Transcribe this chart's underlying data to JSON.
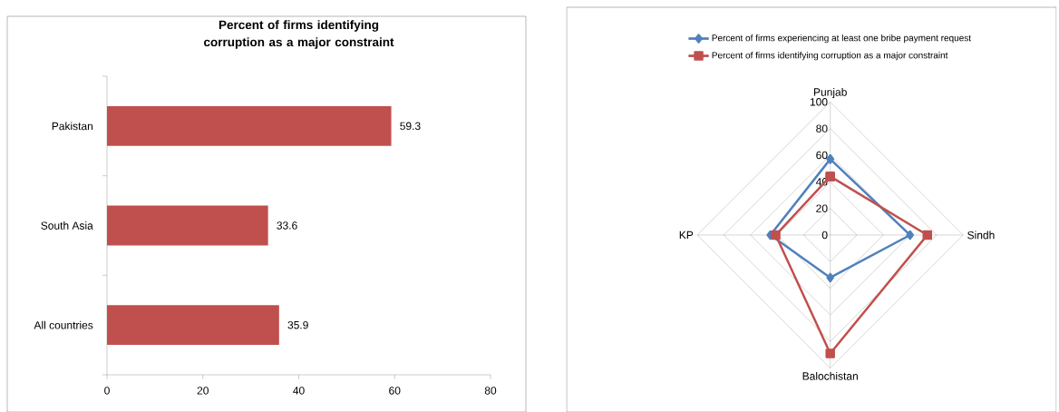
{
  "chart_data": [
    {
      "type": "bar",
      "orientation": "horizontal",
      "title": "Percent of firms identifying corruption as a major constraint",
      "categories": [
        "Pakistan",
        "South Asia",
        "All countries"
      ],
      "values": [
        59.3,
        33.6,
        35.9
      ],
      "color": "#c0504d",
      "xlim": [
        0,
        80
      ],
      "xticks": [
        0,
        20,
        40,
        60,
        80
      ],
      "data_labels": true
    },
    {
      "type": "radar",
      "categories": [
        "Punjab",
        "Sindh",
        "Balochistan",
        "KP"
      ],
      "ylim": [
        0,
        100
      ],
      "yticks": [
        0,
        20,
        40,
        60,
        80,
        100
      ],
      "grid": true,
      "legend": "top",
      "series": [
        {
          "name": "Percent of firms experiencing at least one bribe payment request",
          "color": "#4f81bd",
          "marker": "diamond",
          "values": [
            57,
            60,
            32,
            45
          ]
        },
        {
          "name": "Percent of firms identifying corruption as a major constraint",
          "color": "#c0504d",
          "marker": "square",
          "values": [
            44,
            73,
            89,
            41
          ]
        }
      ]
    }
  ]
}
